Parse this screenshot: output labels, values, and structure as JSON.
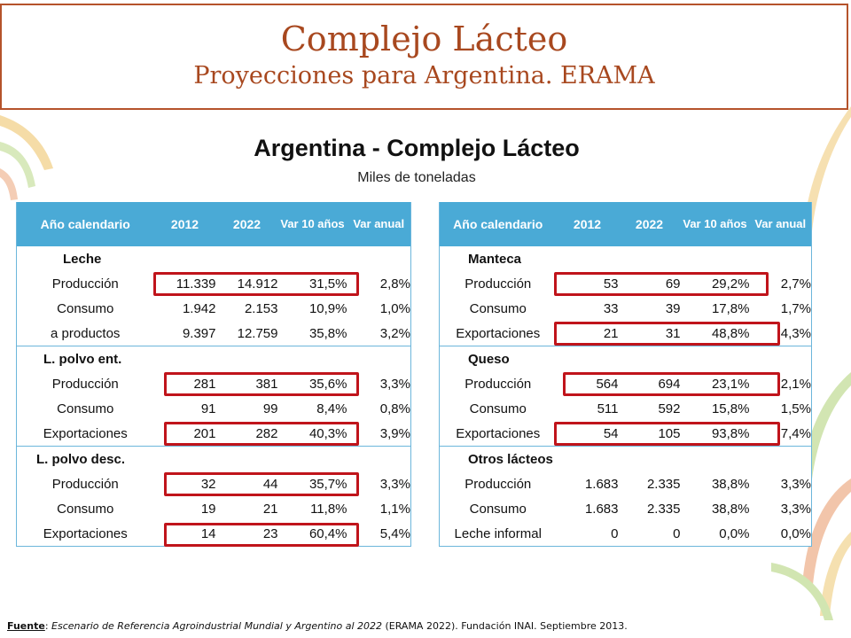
{
  "header": {
    "title": "Complejo Lácteo",
    "subtitle": "Proyecciones para Argentina. ERAMA"
  },
  "heading": "Argentina - Complejo Lácteo",
  "subheading": "Miles de toneladas",
  "columns": {
    "c0": "Año calendario",
    "c1": "2012",
    "c2": "2022",
    "c3": "Var 10 años",
    "c4": "Var anual"
  },
  "left_table": {
    "groups": [
      {
        "name": "Leche",
        "rows": [
          {
            "label": "Producción",
            "v2012": "11.339",
            "v2022": "14.912",
            "var10": "31,5%",
            "var_anual": "2,8%"
          },
          {
            "label": "Consumo",
            "v2012": "1.942",
            "v2022": "2.153",
            "var10": "10,9%",
            "var_anual": "1,0%"
          },
          {
            "label": "a productos",
            "v2012": "9.397",
            "v2022": "12.759",
            "var10": "35,8%",
            "var_anual": "3,2%"
          }
        ]
      },
      {
        "name": "L. polvo ent.",
        "rows": [
          {
            "label": "Producción",
            "v2012": "281",
            "v2022": "381",
            "var10": "35,6%",
            "var_anual": "3,3%"
          },
          {
            "label": "Consumo",
            "v2012": "91",
            "v2022": "99",
            "var10": "8,4%",
            "var_anual": "0,8%"
          },
          {
            "label": "Exportaciones",
            "v2012": "201",
            "v2022": "282",
            "var10": "40,3%",
            "var_anual": "3,9%"
          }
        ]
      },
      {
        "name": "L.  polvo desc.",
        "rows": [
          {
            "label": "Producción",
            "v2012": "32",
            "v2022": "44",
            "var10": "35,7%",
            "var_anual": "3,3%"
          },
          {
            "label": "Consumo",
            "v2012": "19",
            "v2022": "21",
            "var10": "11,8%",
            "var_anual": "1,1%"
          },
          {
            "label": "Exportaciones",
            "v2012": "14",
            "v2022": "23",
            "var10": "60,4%",
            "var_anual": "5,4%"
          }
        ]
      }
    ]
  },
  "right_table": {
    "groups": [
      {
        "name": "Manteca",
        "rows": [
          {
            "label": "Producción",
            "v2012": "53",
            "v2022": "69",
            "var10": "29,2%",
            "var_anual": "2,7%"
          },
          {
            "label": "Consumo",
            "v2012": "33",
            "v2022": "39",
            "var10": "17,8%",
            "var_anual": "1,7%"
          },
          {
            "label": "Exportaciones",
            "v2012": "21",
            "v2022": "31",
            "var10": "48,8%",
            "var_anual": "4,3%"
          }
        ]
      },
      {
        "name": "Queso",
        "rows": [
          {
            "label": "Producción",
            "v2012": "564",
            "v2022": "694",
            "var10": "23,1%",
            "var_anual": "2,1%"
          },
          {
            "label": "Consumo",
            "v2012": "511",
            "v2022": "592",
            "var10": "15,8%",
            "var_anual": "1,5%"
          },
          {
            "label": "Exportaciones",
            "v2012": "54",
            "v2022": "105",
            "var10": "93,8%",
            "var_anual": "7,4%"
          }
        ]
      },
      {
        "name": "Otros lácteos",
        "rows": [
          {
            "label": "Producción",
            "v2012": "1.683",
            "v2022": "2.335",
            "var10": "38,8%",
            "var_anual": "3,3%"
          },
          {
            "label": "Consumo",
            "v2012": "1.683",
            "v2022": "2.335",
            "var10": "38,8%",
            "var_anual": "3,3%"
          },
          {
            "label": "Leche informal",
            "v2012": "0",
            "v2022": "0",
            "var10": "0,0%",
            "var_anual": "0,0%"
          }
        ]
      }
    ]
  },
  "footer": {
    "label": "Fuente",
    "sep": ": ",
    "source_italic": "Escenario de Referencia Agroindustrial Mundial y Argentino al 2022",
    "rest": " (ERAMA 2022). Fundación INAI. Septiembre  2013."
  },
  "colors": {
    "title": "#a8481f",
    "header_fill": "#4aaad6",
    "highlight": "#c0141b"
  }
}
